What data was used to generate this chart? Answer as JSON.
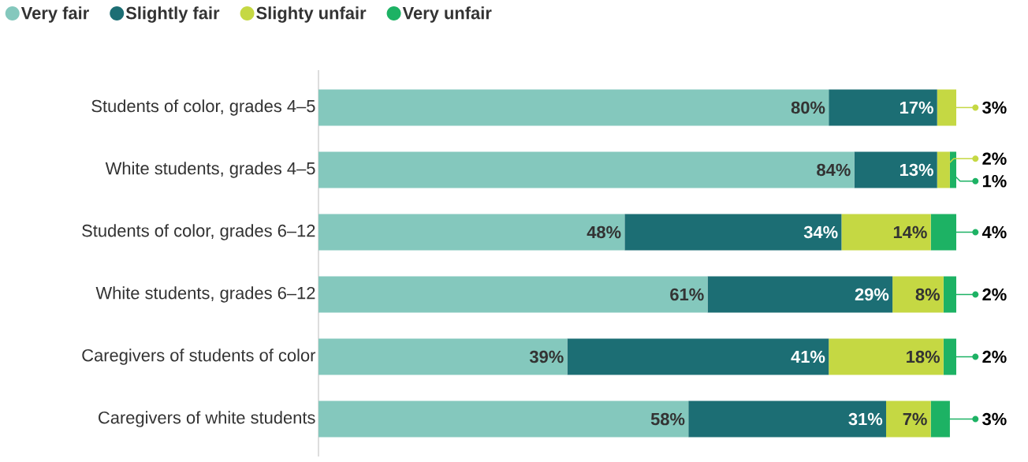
{
  "chart_data": {
    "type": "bar",
    "orientation": "horizontal",
    "stacked": true,
    "categories": [
      "Students of color, grades 4–5",
      "White students, grades 4–5",
      "Students of color, grades 6–12",
      "White students, grades 6–12",
      "Caregivers of students of color",
      "Caregivers of white students"
    ],
    "series": [
      {
        "name": "Very fair",
        "color": "#84c8bd",
        "values": [
          80,
          84,
          48,
          61,
          39,
          58
        ],
        "value_labels": [
          "80%",
          "84%",
          "48%",
          "61%",
          "39%",
          "58%"
        ]
      },
      {
        "name": "Slightly fair",
        "color": "#1c6e74",
        "values": [
          17,
          13,
          34,
          29,
          41,
          31
        ],
        "value_labels": [
          "17%",
          "13%",
          "34%",
          "29%",
          "41%",
          "31%"
        ]
      },
      {
        "name": "Slighty unfair",
        "color": "#c5d843",
        "values": [
          3,
          2,
          14,
          8,
          18,
          7
        ],
        "value_labels": [
          "3%",
          "2%",
          "14%",
          "8%",
          "18%",
          "7%"
        ]
      },
      {
        "name": "Very unfair",
        "color": "#1db264",
        "values": [
          null,
          1,
          4,
          2,
          2,
          3
        ],
        "value_labels": [
          null,
          "1%",
          "4%",
          "2%",
          "2%",
          "3%"
        ]
      }
    ],
    "xlim": [
      0,
      100
    ],
    "tick_labels": "y",
    "legend": "top left",
    "grid": false
  }
}
